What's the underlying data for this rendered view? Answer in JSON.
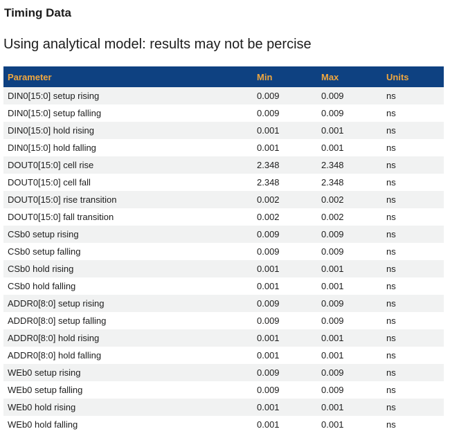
{
  "page": {
    "title": "Timing Data",
    "subtitle": "Using analytical model: results may not be percise"
  },
  "colors": {
    "header_bg": "#0e4181",
    "header_text": "#f0a73f",
    "row_alt_bg": "#f1f2f2",
    "row_bg": "#ffffff",
    "text": "#1c1c1c"
  },
  "table": {
    "columns": [
      "Parameter",
      "Min",
      "Max",
      "Units"
    ],
    "column_keys": [
      "parameter",
      "min",
      "max",
      "units"
    ],
    "rows": [
      {
        "parameter": "DIN0[15:0] setup rising",
        "min": "0.009",
        "max": "0.009",
        "units": "ns"
      },
      {
        "parameter": "DIN0[15:0] setup falling",
        "min": "0.009",
        "max": "0.009",
        "units": "ns"
      },
      {
        "parameter": "DIN0[15:0] hold rising",
        "min": "0.001",
        "max": "0.001",
        "units": "ns"
      },
      {
        "parameter": "DIN0[15:0] hold falling",
        "min": "0.001",
        "max": "0.001",
        "units": "ns"
      },
      {
        "parameter": "DOUT0[15:0] cell rise",
        "min": "2.348",
        "max": "2.348",
        "units": "ns"
      },
      {
        "parameter": "DOUT0[15:0] cell fall",
        "min": "2.348",
        "max": "2.348",
        "units": "ns"
      },
      {
        "parameter": "DOUT0[15:0] rise transition",
        "min": "0.002",
        "max": "0.002",
        "units": "ns"
      },
      {
        "parameter": "DOUT0[15:0] fall transition",
        "min": "0.002",
        "max": "0.002",
        "units": "ns"
      },
      {
        "parameter": "CSb0 setup rising",
        "min": "0.009",
        "max": "0.009",
        "units": "ns"
      },
      {
        "parameter": "CSb0 setup falling",
        "min": "0.009",
        "max": "0.009",
        "units": "ns"
      },
      {
        "parameter": "CSb0 hold rising",
        "min": "0.001",
        "max": "0.001",
        "units": "ns"
      },
      {
        "parameter": "CSb0 hold falling",
        "min": "0.001",
        "max": "0.001",
        "units": "ns"
      },
      {
        "parameter": "ADDR0[8:0] setup rising",
        "min": "0.009",
        "max": "0.009",
        "units": "ns"
      },
      {
        "parameter": "ADDR0[8:0] setup falling",
        "min": "0.009",
        "max": "0.009",
        "units": "ns"
      },
      {
        "parameter": "ADDR0[8:0] hold rising",
        "min": "0.001",
        "max": "0.001",
        "units": "ns"
      },
      {
        "parameter": "ADDR0[8:0] hold falling",
        "min": "0.001",
        "max": "0.001",
        "units": "ns"
      },
      {
        "parameter": "WEb0 setup rising",
        "min": "0.009",
        "max": "0.009",
        "units": "ns"
      },
      {
        "parameter": "WEb0 setup falling",
        "min": "0.009",
        "max": "0.009",
        "units": "ns"
      },
      {
        "parameter": "WEb0 hold rising",
        "min": "0.001",
        "max": "0.001",
        "units": "ns"
      },
      {
        "parameter": "WEb0 hold falling",
        "min": "0.001",
        "max": "0.001",
        "units": "ns"
      }
    ]
  }
}
